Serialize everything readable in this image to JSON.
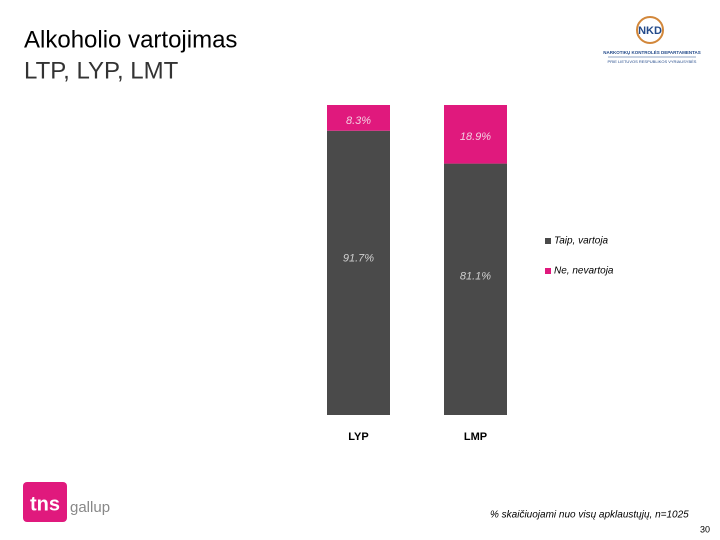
{
  "header": {
    "title": "Alkoholio vartojimas",
    "subtitle": "LTP, LYP, LMT",
    "logo_mark": "NKD",
    "logo_line1": "NARKOTIKŲ KONTROLĖS DEPARTAMENTAS",
    "logo_line2": "PRIE LIETUVOS RESPUBLIKOS VYRIAUSYBĖS"
  },
  "chart_data": {
    "type": "stacked_bar",
    "categories": [
      "LYP",
      "LMP"
    ],
    "series": [
      {
        "name": "Taip, vartoja",
        "color": "#4a4a4a",
        "values": [
          91.7,
          81.1
        ],
        "value_labels": [
          "91.7%",
          "81.1%"
        ]
      },
      {
        "name": "Ne, nevartoja",
        "color": "#e0197d",
        "values": [
          8.3,
          18.9
        ],
        "value_labels": [
          "8.3%",
          "18.9%"
        ]
      }
    ],
    "ylim": [
      0,
      100
    ]
  },
  "footer": {
    "brand": "tns",
    "brand2": "gallup",
    "note": "% skaičiuojami nuo visų apklaustųjų, n=1025",
    "page": "30"
  }
}
